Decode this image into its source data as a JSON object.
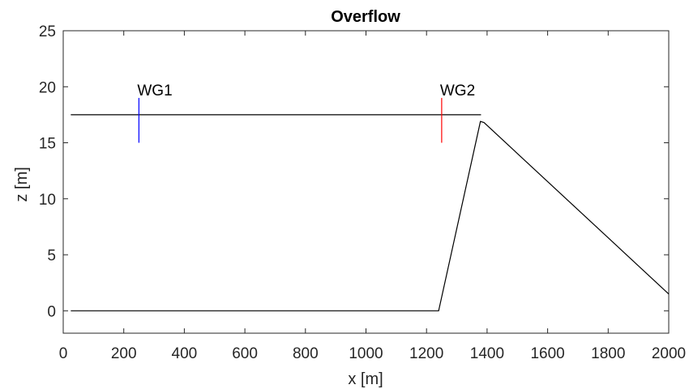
{
  "chart_data": {
    "type": "line",
    "title": "Overflow",
    "xlabel": "x [m]",
    "ylabel": "z [m]",
    "xlim": [
      0,
      2000
    ],
    "ylim": [
      -2,
      25
    ],
    "xticks": [
      0,
      200,
      400,
      600,
      800,
      1000,
      1200,
      1400,
      1600,
      1800,
      2000
    ],
    "yticks": [
      0,
      5,
      10,
      15,
      20,
      25
    ],
    "grid": false,
    "colors": {
      "axes": "#262626",
      "series": "#000000",
      "wg1": "#0000ff",
      "wg2": "#ff0000"
    },
    "series": [
      {
        "x": [
          25,
          1240,
          1378,
          1390,
          2000
        ],
        "y": [
          0,
          0,
          16.9,
          16.8,
          1.5
        ],
        "color": "#000000"
      },
      {
        "x": [
          25,
          1380
        ],
        "y": [
          17.5,
          17.5
        ],
        "color": "#000000"
      },
      {
        "x": [
          250,
          250
        ],
        "y": [
          15,
          19
        ],
        "color": "#0000ff"
      },
      {
        "x": [
          1250,
          1250
        ],
        "y": [
          15,
          19
        ],
        "color": "#ff0000"
      }
    ],
    "annotations": [
      {
        "text": "WG1",
        "x": 250,
        "y": 19
      },
      {
        "text": "WG2",
        "x": 1250,
        "y": 19
      }
    ]
  }
}
